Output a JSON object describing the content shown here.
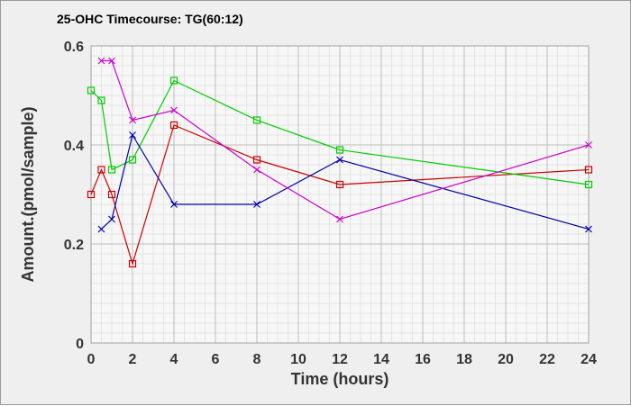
{
  "chart_data": {
    "type": "line",
    "title": "25-OHC Timecourse: TG(60:12)",
    "xlabel": "Time (hours)",
    "ylabel": "Amount.(pmol/sample)",
    "xlim": [
      0,
      24
    ],
    "ylim": [
      0,
      0.6
    ],
    "x_ticks": [
      0,
      2,
      4,
      6,
      8,
      10,
      12,
      14,
      16,
      18,
      20,
      22,
      24
    ],
    "y_ticks": [
      0,
      0.2,
      0.4,
      0.6
    ],
    "x_tick_labels": [
      "0",
      "2",
      "4",
      "6",
      "8",
      "10",
      "12",
      "14",
      "16",
      "18",
      "20",
      "22",
      "24"
    ],
    "y_tick_labels": [
      "0",
      "0.2",
      "0.4",
      "0.6"
    ],
    "grid": true,
    "legend": "none",
    "series": [
      {
        "color": "#cc0000",
        "marker": "square",
        "x": [
          0,
          0.5,
          1,
          2,
          4,
          8,
          12,
          24
        ],
        "y": [
          0.3,
          0.35,
          0.3,
          0.16,
          0.44,
          0.37,
          0.32,
          0.35
        ]
      },
      {
        "color": "#00cc00",
        "marker": "square",
        "x": [
          0,
          0.5,
          1,
          2,
          4,
          8,
          12,
          24
        ],
        "y": [
          0.51,
          0.49,
          0.35,
          0.37,
          0.53,
          0.45,
          0.39,
          0.32
        ]
      },
      {
        "color": "#0000aa",
        "marker": "x",
        "x": [
          0.5,
          1,
          2,
          4,
          8,
          12,
          24
        ],
        "y": [
          0.23,
          0.25,
          0.42,
          0.28,
          0.28,
          0.37,
          0.23
        ]
      },
      {
        "color": "#cc00cc",
        "marker": "x",
        "x": [
          0.5,
          1,
          2,
          4,
          8,
          12,
          24
        ],
        "y": [
          0.57,
          0.57,
          0.45,
          0.47,
          0.35,
          0.25,
          0.4
        ]
      }
    ]
  }
}
